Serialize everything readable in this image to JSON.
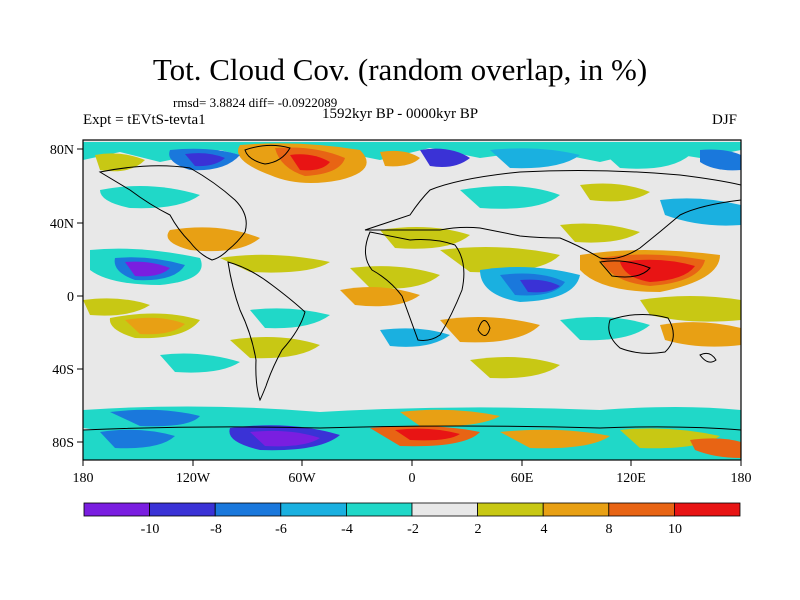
{
  "header": {
    "title": "Tot. Cloud Cov. (random overlap, in %)",
    "stats": "rmsd= 3.8824 diff= -0.0922089",
    "expt": "Expt = tEVtS-tevta1",
    "period": "1592kyr BP - 0000kyr BP",
    "season": "DJF"
  },
  "map": {
    "x_ticks": [
      "180",
      "120W",
      "60W",
      "0",
      "60E",
      "120E",
      "180"
    ],
    "y_ticks": [
      "80N",
      "40N",
      "0",
      "40S",
      "80S"
    ]
  },
  "colorbar": {
    "labels": [
      "-10",
      "-8",
      "-6",
      "-4",
      "-2",
      "2",
      "4",
      "8",
      "10"
    ],
    "colors": [
      "#7a1ee0",
      "#3a32d6",
      "#1a78dc",
      "#1ab0e0",
      "#20d8c8",
      "#e8e8e8",
      "#c8c814",
      "#e8a014",
      "#e86414",
      "#e81414"
    ]
  },
  "colors": {
    "coast": "#000000",
    "background": "#e8e8e8"
  }
}
